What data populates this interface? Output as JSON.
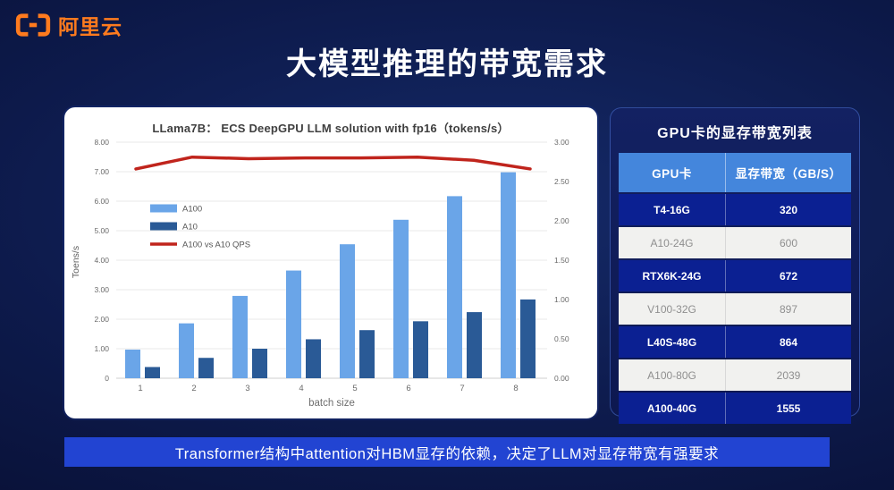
{
  "logo": {
    "text": "阿里云",
    "color": "#ff7b1e"
  },
  "slide_title": "大模型推理的带宽需求",
  "chart_data": {
    "type": "bar",
    "title": "LLama7B：  ECS DeepGPU LLM solution with fp16（tokens/s）",
    "categories": [
      "1",
      "2",
      "3",
      "4",
      "5",
      "6",
      "7",
      "8"
    ],
    "series": [
      {
        "name": "A100",
        "color": "#6aa5e8",
        "axis": "left",
        "values": [
          0.97,
          1.86,
          2.79,
          3.65,
          4.54,
          5.37,
          6.17,
          6.98
        ]
      },
      {
        "name": "A10",
        "color": "#2a5a96",
        "axis": "left",
        "values": [
          0.38,
          0.69,
          1.0,
          1.32,
          1.63,
          1.93,
          2.24,
          2.67
        ]
      }
    ],
    "line_series": {
      "name": "A100 vs A10 QPS",
      "color": "#c0241c",
      "axis": "right",
      "values": [
        2.66,
        2.81,
        2.79,
        2.8,
        2.8,
        2.81,
        2.77,
        2.66
      ]
    },
    "xlabel": "batch size",
    "ylabel": "Toens/s",
    "left_axis": {
      "min": 0,
      "max": 8,
      "ticks": [
        "8.00",
        "7.00",
        "6.00",
        "5.00",
        "4.00",
        "3.00",
        "2.00",
        "1.00",
        "0"
      ]
    },
    "right_axis": {
      "min": 0,
      "max": 3,
      "ticks": [
        "3.00",
        "2.50",
        "2.00",
        "1.50",
        "1.00",
        "0.50",
        "0.00"
      ]
    },
    "grid": true,
    "legend_position": "upper-left-inside"
  },
  "gpu_table": {
    "title": "GPU卡的显存带宽列表",
    "headers": [
      "GPU卡",
      "显存带宽（GB/S）"
    ],
    "header_color": "#4486dc",
    "dark_row_color": "#0b2092",
    "rows": [
      {
        "gpu": "T4-16G",
        "bandwidth": "320"
      },
      {
        "gpu": "A10-24G",
        "bandwidth": "600"
      },
      {
        "gpu": "RTX6K-24G",
        "bandwidth": "672"
      },
      {
        "gpu": "V100-32G",
        "bandwidth": "897"
      },
      {
        "gpu": "L40S-48G",
        "bandwidth": "864"
      },
      {
        "gpu": "A100-80G",
        "bandwidth": "2039"
      },
      {
        "gpu": "A100-40G",
        "bandwidth": "1555"
      }
    ]
  },
  "banner": {
    "text": "Transformer结构中attention对HBM显存的依赖，决定了LLM对显存带宽有强要求",
    "color": "#2244d2"
  }
}
